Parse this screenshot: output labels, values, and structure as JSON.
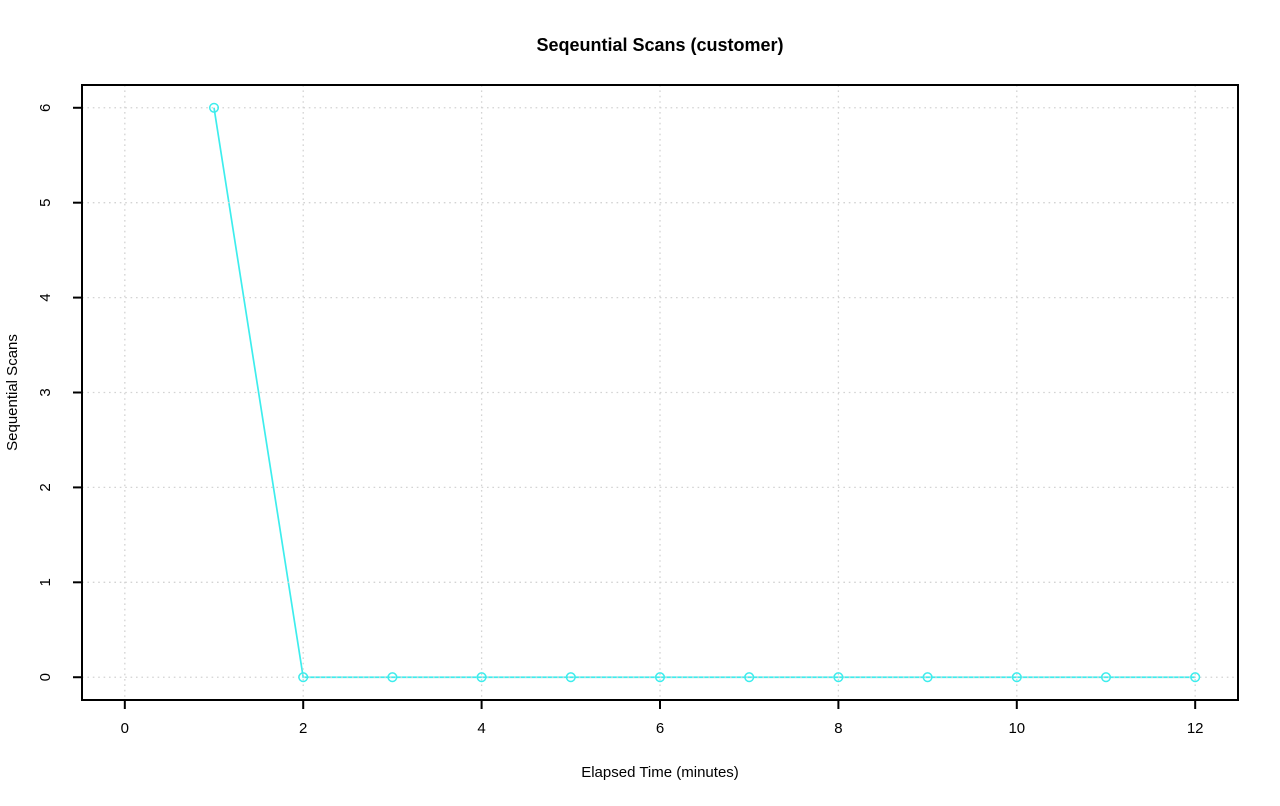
{
  "page": {
    "background_color": "#FFFFFF"
  },
  "chart_data": {
    "type": "line",
    "title": "Seqeuntial Scans (customer)",
    "xlabel": "Elapsed Time (minutes)",
    "ylabel": "Sequential Scans",
    "x": [
      1,
      2,
      3,
      4,
      5,
      6,
      7,
      8,
      9,
      10,
      11,
      12
    ],
    "y": [
      6,
      0,
      0,
      0,
      0,
      0,
      0,
      0,
      0,
      0,
      0,
      0
    ],
    "xlim": [
      0,
      12
    ],
    "ylim": [
      0,
      6
    ],
    "xticks": [
      0,
      2,
      4,
      6,
      8,
      10,
      12
    ],
    "yticks": [
      0,
      1,
      2,
      3,
      4,
      5,
      6
    ],
    "grid": "dotted",
    "legend": "none",
    "marker": "open-circle",
    "line_color": "#3DEDED",
    "grid_color": "#D3D3D3",
    "axis_color": "#000000",
    "text_color": "#000000"
  }
}
